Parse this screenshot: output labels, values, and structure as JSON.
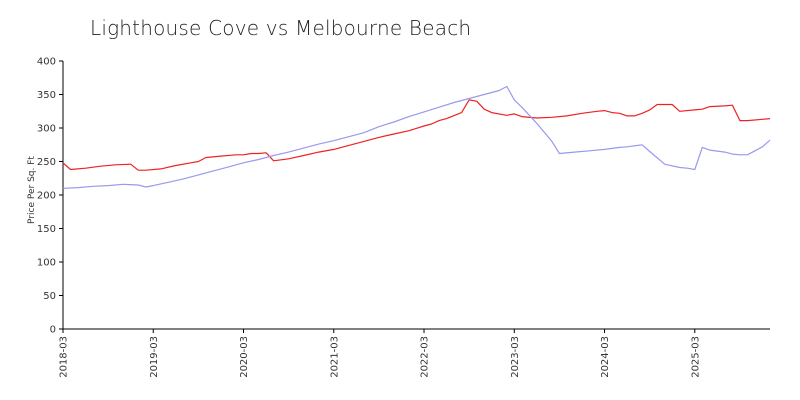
{
  "chart_data": {
    "type": "line",
    "title": "Lighthouse Cove vs Melbourne Beach",
    "ylabel": "Price Per Sq. Ft",
    "xlabel": "",
    "ylim": [
      0,
      400
    ],
    "yticks": [
      0,
      50,
      100,
      150,
      200,
      250,
      300,
      350,
      400
    ],
    "xlim": [
      "2018-03",
      "2025-12"
    ],
    "xticks": [
      "2018-03",
      "2019-03",
      "2020-03",
      "2021-03",
      "2022-03",
      "2023-03",
      "2024-03",
      "2025-03"
    ],
    "grid": false,
    "legend": "none",
    "series": [
      {
        "color": "#ee2222",
        "points": [
          [
            "2018-03",
            248
          ],
          [
            "2018-04",
            238
          ],
          [
            "2018-06",
            240
          ],
          [
            "2018-08",
            243
          ],
          [
            "2018-10",
            245
          ],
          [
            "2018-12",
            246
          ],
          [
            "2019-01",
            237
          ],
          [
            "2019-02",
            237
          ],
          [
            "2019-04",
            239
          ],
          [
            "2019-06",
            244
          ],
          [
            "2019-08",
            248
          ],
          [
            "2019-09",
            250
          ],
          [
            "2019-10",
            256
          ],
          [
            "2019-12",
            258
          ],
          [
            "2020-02",
            260
          ],
          [
            "2020-03",
            260
          ],
          [
            "2020-04",
            262
          ],
          [
            "2020-05",
            262
          ],
          [
            "2020-06",
            263
          ],
          [
            "2020-07",
            251
          ],
          [
            "2020-09",
            254
          ],
          [
            "2020-11",
            259
          ],
          [
            "2021-01",
            264
          ],
          [
            "2021-03",
            268
          ],
          [
            "2021-05",
            274
          ],
          [
            "2021-07",
            280
          ],
          [
            "2021-09",
            286
          ],
          [
            "2021-11",
            291
          ],
          [
            "2022-01",
            296
          ],
          [
            "2022-03",
            303
          ],
          [
            "2022-04",
            306
          ],
          [
            "2022-05",
            311
          ],
          [
            "2022-06",
            314
          ],
          [
            "2022-08",
            323
          ],
          [
            "2022-09",
            342
          ],
          [
            "2022-10",
            340
          ],
          [
            "2022-11",
            328
          ],
          [
            "2022-12",
            323
          ],
          [
            "2023-02",
            319
          ],
          [
            "2023-03",
            321
          ],
          [
            "2023-04",
            317
          ],
          [
            "2023-06",
            315
          ],
          [
            "2023-08",
            316
          ],
          [
            "2023-10",
            318
          ],
          [
            "2023-12",
            322
          ],
          [
            "2024-02",
            325
          ],
          [
            "2024-03",
            326
          ],
          [
            "2024-04",
            323
          ],
          [
            "2024-05",
            322
          ],
          [
            "2024-06",
            318
          ],
          [
            "2024-07",
            318
          ],
          [
            "2024-08",
            322
          ],
          [
            "2024-09",
            327
          ],
          [
            "2024-10",
            335
          ],
          [
            "2024-11",
            335
          ],
          [
            "2024-12",
            335
          ],
          [
            "2025-01",
            325
          ],
          [
            "2025-03",
            327
          ],
          [
            "2025-04",
            328
          ],
          [
            "2025-05",
            332
          ],
          [
            "2025-07",
            333
          ],
          [
            "2025-08",
            334
          ],
          [
            "2025-09",
            311
          ],
          [
            "2025-10",
            311
          ],
          [
            "2025-12",
            313
          ],
          [
            "2026-01",
            314
          ]
        ]
      },
      {
        "color": "#9999ee",
        "points": [
          [
            "2018-03",
            210
          ],
          [
            "2018-05",
            211
          ],
          [
            "2018-07",
            213
          ],
          [
            "2018-09",
            214
          ],
          [
            "2018-11",
            216
          ],
          [
            "2019-01",
            215
          ],
          [
            "2019-02",
            212
          ],
          [
            "2019-03",
            214
          ],
          [
            "2019-05",
            219
          ],
          [
            "2019-07",
            224
          ],
          [
            "2019-09",
            230
          ],
          [
            "2019-11",
            236
          ],
          [
            "2020-01",
            242
          ],
          [
            "2020-03",
            248
          ],
          [
            "2020-05",
            253
          ],
          [
            "2020-07",
            259
          ],
          [
            "2020-09",
            264
          ],
          [
            "2020-11",
            270
          ],
          [
            "2021-01",
            276
          ],
          [
            "2021-03",
            281
          ],
          [
            "2021-05",
            287
          ],
          [
            "2021-07",
            293
          ],
          [
            "2021-09",
            302
          ],
          [
            "2021-11",
            309
          ],
          [
            "2022-01",
            317
          ],
          [
            "2022-03",
            324
          ],
          [
            "2022-05",
            331
          ],
          [
            "2022-07",
            338
          ],
          [
            "2022-09",
            344
          ],
          [
            "2022-11",
            350
          ],
          [
            "2023-01",
            356
          ],
          [
            "2023-02",
            362
          ],
          [
            "2023-03",
            342
          ],
          [
            "2023-04",
            331
          ],
          [
            "2023-06",
            307
          ],
          [
            "2023-08",
            280
          ],
          [
            "2023-09",
            262
          ],
          [
            "2023-11",
            264
          ],
          [
            "2024-01",
            266
          ],
          [
            "2024-03",
            268
          ],
          [
            "2024-05",
            271
          ],
          [
            "2024-06",
            272
          ],
          [
            "2024-08",
            275
          ],
          [
            "2024-09",
            265
          ],
          [
            "2024-11",
            246
          ],
          [
            "2025-01",
            241
          ],
          [
            "2025-02",
            240
          ],
          [
            "2025-03",
            238
          ],
          [
            "2025-04",
            271
          ],
          [
            "2025-05",
            267
          ],
          [
            "2025-07",
            264
          ],
          [
            "2025-08",
            261
          ],
          [
            "2025-09",
            260
          ],
          [
            "2025-10",
            260
          ],
          [
            "2025-12",
            272
          ],
          [
            "2026-01",
            282
          ]
        ]
      }
    ]
  }
}
